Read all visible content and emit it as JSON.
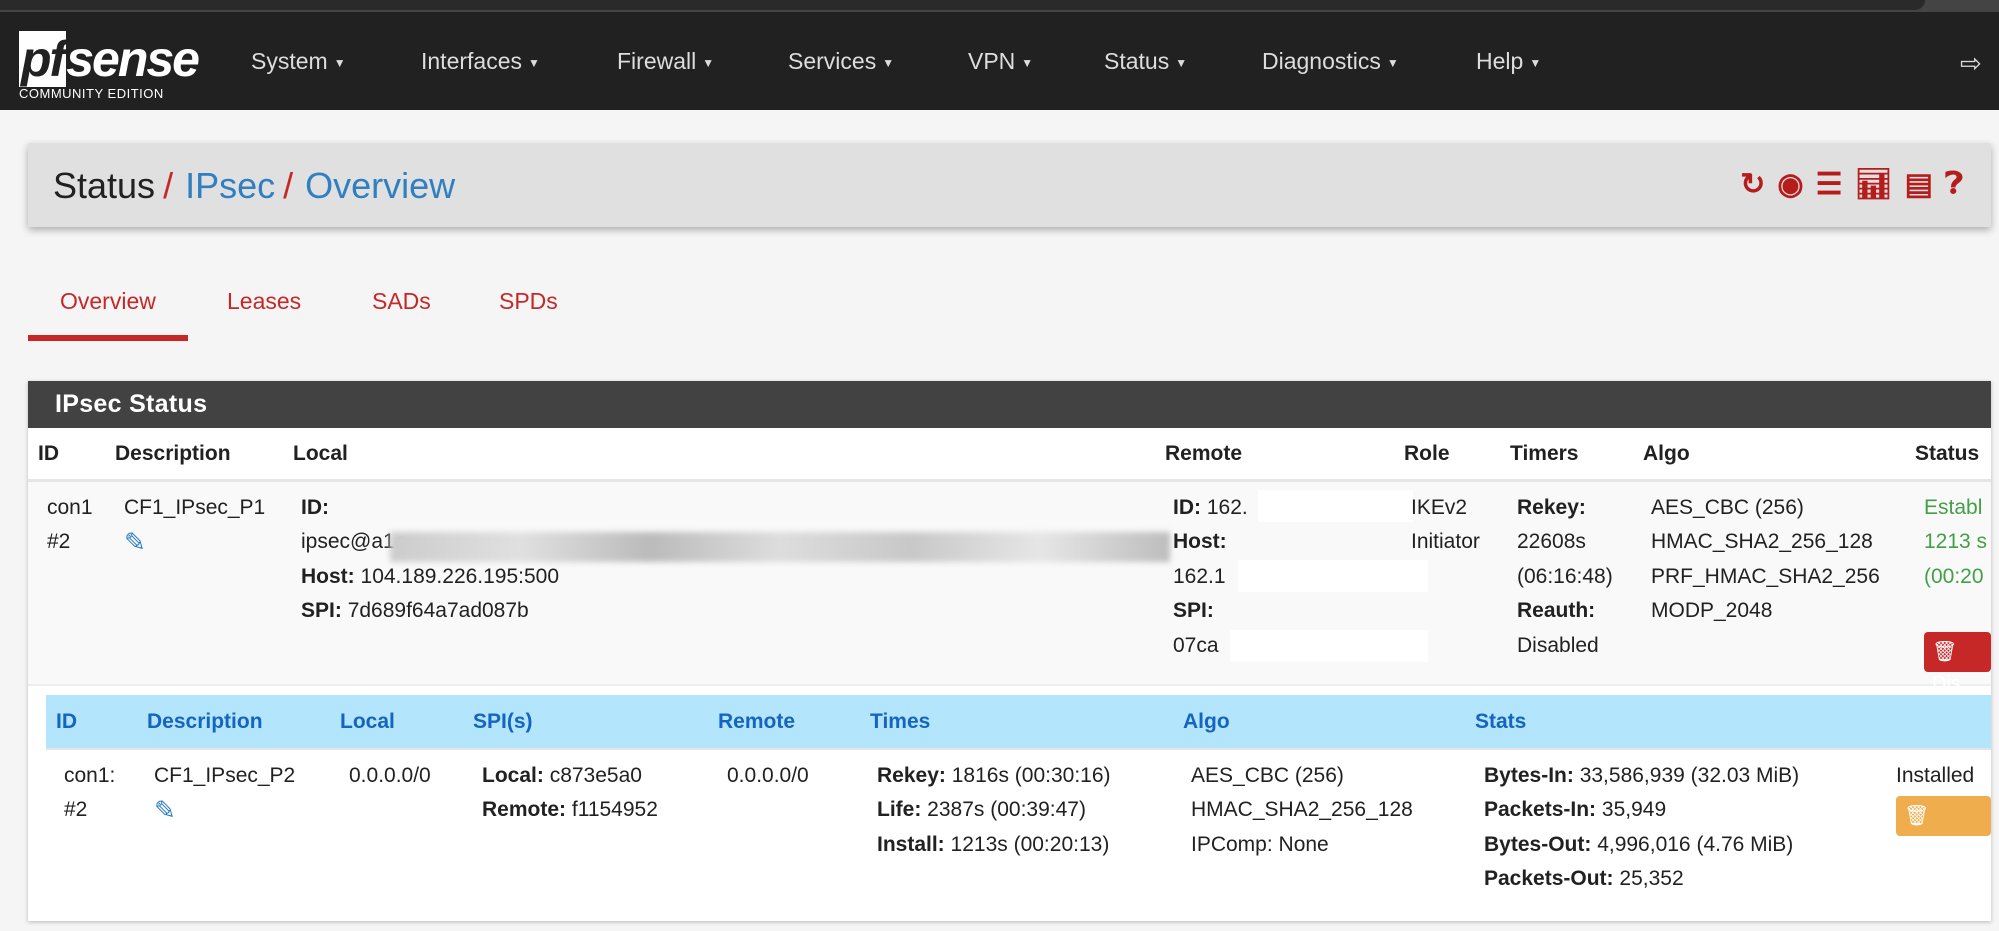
{
  "nav": {
    "logo_main": "pfsense",
    "logo_sub": "COMMUNITY EDITION",
    "items": [
      "System",
      "Interfaces",
      "Firewall",
      "Services",
      "VPN",
      "Status",
      "Diagnostics",
      "Help"
    ],
    "logout_icon": "sign-out-icon"
  },
  "breadcrumb": {
    "root": "Status",
    "sep": "/",
    "level2": "IPsec",
    "level3": "Overview",
    "icons": [
      "refresh-icon",
      "stop-icon",
      "settings-sliders-icon",
      "chart-icon",
      "list-icon",
      "help-icon"
    ]
  },
  "tabs": [
    "Overview",
    "Leases",
    "SADs",
    "SPDs"
  ],
  "panel": {
    "title": "IPsec Status",
    "p1_headers": [
      "ID",
      "Description",
      "Local",
      "Remote",
      "Role",
      "Timers",
      "Algo",
      "Status"
    ],
    "p1": {
      "id1": "con1",
      "id2": "#2",
      "description": "CF1_IPsec_P1",
      "local_id_label": "ID:",
      "local_id_value": "ipsec@a1c",
      "local_host_label": "Host:",
      "local_host": "104.189.226.195:500",
      "local_spi_label": "SPI:",
      "local_spi": "7d689f64a7ad087b",
      "remote_id_label": "ID:",
      "remote_id": "162.",
      "remote_host_label": "Host:",
      "remote_host": "162.1",
      "remote_spi_label": "SPI:",
      "remote_spi": "07ca",
      "role1": "IKEv2",
      "role2": "Initiator",
      "rekey_label": "Rekey:",
      "rekey": "22608s",
      "rekey_time": "(06:16:48)",
      "reauth_label": "Reauth:",
      "reauth": "Disabled",
      "algo": [
        "AES_CBC (256)",
        "HMAC_SHA2_256_128",
        "PRF_HMAC_SHA2_256",
        "MODP_2048"
      ],
      "status1": "Establ",
      "status2": "1213 s",
      "status3": "(00:20",
      "disconnect_label": "Dis"
    },
    "p2_headers": [
      "ID",
      "Description",
      "Local",
      "SPI(s)",
      "Remote",
      "Times",
      "Algo",
      "Stats"
    ],
    "p2": {
      "id1": "con1:",
      "id2": "#2",
      "description": "CF1_IPsec_P2",
      "local": "0.0.0.0/0",
      "spi_local_label": "Local:",
      "spi_local": "c873e5a0",
      "spi_remote_label": "Remote:",
      "spi_remote": "f1154952",
      "remote": "0.0.0.0/0",
      "times": [
        {
          "label": "Rekey:",
          "value": "1816s (00:30:16)"
        },
        {
          "label": "Life:",
          "value": "2387s (00:39:47)"
        },
        {
          "label": "Install:",
          "value": "1213s (00:20:13)"
        }
      ],
      "algo": [
        "AES_CBC (256)",
        "HMAC_SHA2_256_128",
        "IPComp: None"
      ],
      "stats": [
        {
          "label": "Bytes-In:",
          "value": "33,586,939 (32.03 MiB)"
        },
        {
          "label": "Packets-In:",
          "value": "35,949"
        },
        {
          "label": "Bytes-Out:",
          "value": "4,996,016 (4.76 MiB)"
        },
        {
          "label": "Packets-Out:",
          "value": "25,352"
        }
      ],
      "status": "Installed",
      "disconnect_label": "Disco"
    }
  },
  "colors": {
    "navbar": "#212121",
    "accent_red": "#c62828",
    "link_blue": "#2f7fc1",
    "status_green": "#43a047",
    "p2_header": "#b3e5fc",
    "warning_orange": "#f0ad4e"
  }
}
